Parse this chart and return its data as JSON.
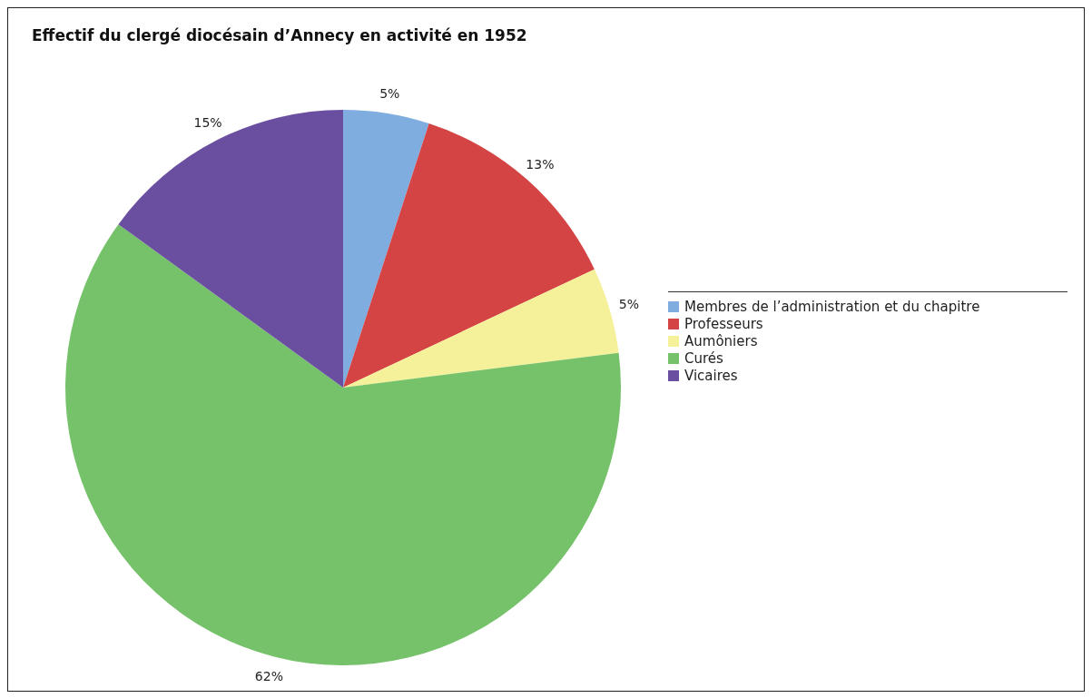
{
  "chart_data": {
    "type": "pie",
    "title": "Effectif du clergé diocésain d’Annecy en activité en 1952",
    "categories": [
      "Membres de l’administration et du chapitre",
      "Professeurs",
      "Aumôniers",
      "Curés",
      "Vicaires"
    ],
    "values": [
      5,
      13,
      5,
      62,
      15
    ],
    "colors": [
      "#7fade0",
      "#d44444",
      "#f5f09a",
      "#76c26a",
      "#6a4fa0"
    ],
    "value_labels": [
      "5%",
      "13%",
      "5%",
      "62%",
      "15%"
    ],
    "legend": "right"
  }
}
